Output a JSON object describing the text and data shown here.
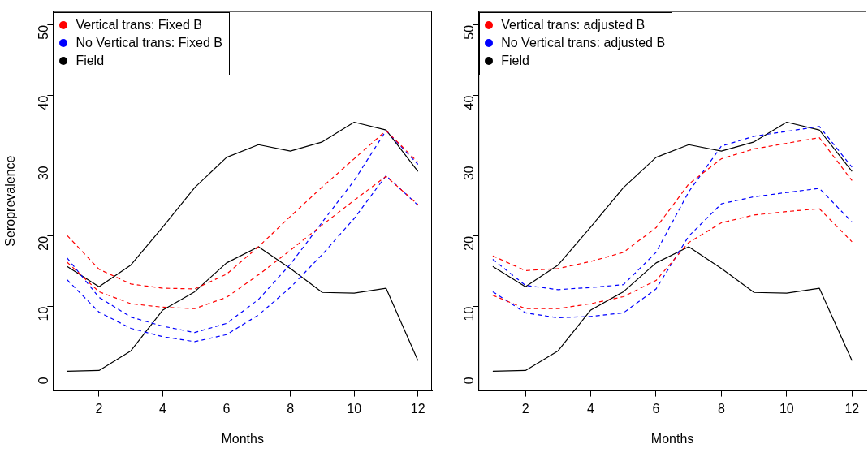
{
  "chart_data": [
    {
      "type": "line",
      "ylabel": "Seroprevalence",
      "xlabel": "Months",
      "x": [
        1,
        2,
        3,
        4,
        5,
        6,
        7,
        8,
        9,
        10,
        11,
        12
      ],
      "xlim": [
        0.56,
        12.44
      ],
      "xticks": [
        2,
        4,
        6,
        8,
        10,
        12
      ],
      "ylim": [
        -2,
        52
      ],
      "yticks": [
        0,
        10,
        20,
        30,
        40,
        50
      ],
      "legend": "top left",
      "marker": "none",
      "grid": false,
      "series": [
        {
          "name": "Vertical trans: Fixed B",
          "color": "#ff0000",
          "line_style": "dashed",
          "values": [
            20.1,
            15.3,
            13.2,
            12.6,
            12.5,
            14.6,
            18.5,
            22.8,
            27,
            31,
            35,
            30.5
          ]
        },
        {
          "color": "#ff0000",
          "line_style": "dashed",
          "values": [
            16.3,
            12.1,
            10.4,
            9.9,
            9.7,
            11.3,
            14.5,
            18,
            21.6,
            25.1,
            28.5,
            24.5
          ]
        },
        {
          "name": "No Vertical trans: Fixed B",
          "color": "#0000ff",
          "line_style": "dashed",
          "values": [
            16.9,
            11.3,
            8.5,
            7.2,
            6.3,
            7.6,
            11,
            16,
            22,
            27.9,
            35,
            30.2
          ]
        },
        {
          "color": "#0000ff",
          "line_style": "dashed",
          "values": [
            13.8,
            9.2,
            6.9,
            5.7,
            5,
            6,
            8.8,
            12.7,
            17.4,
            22.5,
            28.6,
            24.4
          ]
        },
        {
          "name": "Field",
          "color": "#000000",
          "line_style": "solid",
          "values": [
            15.7,
            12.8,
            15.9,
            21.3,
            26.9,
            31.2,
            33,
            32.1,
            33.4,
            36.2,
            35.1,
            29.2
          ]
        },
        {
          "color": "#000000",
          "line_style": "solid",
          "values": [
            0.8,
            0.9,
            3.7,
            9.5,
            12.1,
            16.2,
            18.5,
            15.4,
            12,
            11.9,
            12.6,
            2.3
          ]
        }
      ]
    },
    {
      "type": "line",
      "xlabel": "Months",
      "x": [
        1,
        2,
        3,
        4,
        5,
        6,
        7,
        8,
        9,
        10,
        11,
        12
      ],
      "xlim": [
        0.56,
        12.44
      ],
      "xticks": [
        2,
        4,
        6,
        8,
        10,
        12
      ],
      "ylim": [
        -2,
        52
      ],
      "yticks": [
        0,
        10,
        20,
        30,
        40,
        50
      ],
      "legend": "top left",
      "marker": "none",
      "grid": false,
      "series": [
        {
          "name": "Vertical trans: adjusted B",
          "color": "#ff0000",
          "line_style": "dashed",
          "values": [
            17.2,
            15.1,
            15.4,
            16.4,
            17.7,
            21.2,
            27.4,
            31,
            32.4,
            33.2,
            34,
            27.9
          ]
        },
        {
          "color": "#ff0000",
          "line_style": "dashed",
          "values": [
            11.6,
            9.7,
            9.7,
            10.4,
            11.4,
            13.7,
            19.1,
            21.9,
            23,
            23.5,
            23.9,
            19.2
          ]
        },
        {
          "name": "No Vertical trans: adjusted B",
          "color": "#0000ff",
          "line_style": "dashed",
          "values": [
            16.7,
            13,
            12.4,
            12.7,
            13.1,
            17.7,
            26.3,
            32.8,
            34.2,
            34.9,
            35.6,
            29.8
          ]
        },
        {
          "color": "#0000ff",
          "line_style": "dashed",
          "values": [
            12.1,
            9.1,
            8.4,
            8.6,
            9.1,
            12.5,
            20,
            24.6,
            25.6,
            26.2,
            26.8,
            22
          ]
        },
        {
          "name": "Field",
          "color": "#000000",
          "line_style": "solid",
          "values": [
            15.7,
            12.8,
            15.9,
            21.3,
            26.9,
            31.2,
            33,
            32.1,
            33.4,
            36.2,
            35.1,
            29.2
          ]
        },
        {
          "color": "#000000",
          "line_style": "solid",
          "values": [
            0.8,
            0.9,
            3.7,
            9.5,
            12.1,
            16.2,
            18.5,
            15.4,
            12,
            11.9,
            12.6,
            2.3
          ]
        }
      ]
    }
  ]
}
